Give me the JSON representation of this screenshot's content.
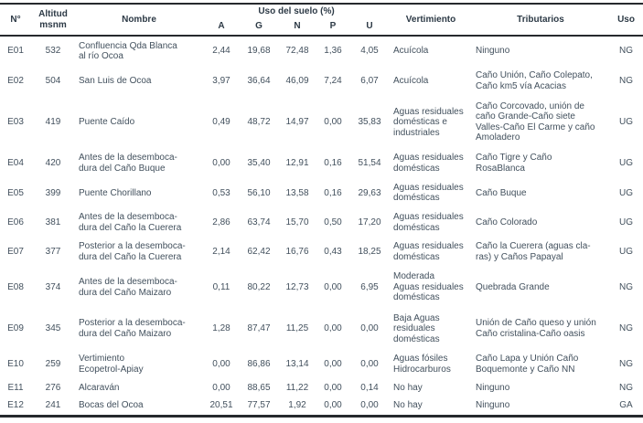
{
  "table": {
    "col_keys": [
      "num",
      "altitud",
      "nombre",
      "a",
      "g",
      "n",
      "p",
      "u",
      "vertimiento",
      "tributarios",
      "uso"
    ],
    "header": {
      "num": "N°",
      "altitud": "Altitud\nmsnm",
      "nombre": "Nombre",
      "uso_suelo": "Uso del suelo (%)",
      "sub": [
        "A",
        "G",
        "N",
        "P",
        "U"
      ],
      "vertimiento": "Vertimiento",
      "tributarios": "Tributarios",
      "uso": "Uso"
    },
    "rows": [
      {
        "num": "E01",
        "altitud": "532",
        "nombre": "Confluencia Qda Blanca\nal río Ocoa",
        "a": "2,44",
        "g": "19,68",
        "n": "72,48",
        "p": "1,36",
        "u": "4,05",
        "vertimiento": "Acuícola",
        "tributarios": "Ninguno",
        "uso": "NG"
      },
      {
        "num": "E02",
        "altitud": "504",
        "nombre": "San Luis de Ocoa",
        "a": "3,97",
        "g": "36,64",
        "n": "46,09",
        "p": "7,24",
        "u": "6,07",
        "vertimiento": "Acuícola",
        "tributarios": "Caño Unión, Caño Colepato,\nCaño km5 vía Acacias",
        "uso": "NG"
      },
      {
        "num": "E03",
        "altitud": "419",
        "nombre": "Puente Caído",
        "a": "0,49",
        "g": "48,72",
        "n": "14,97",
        "p": "0,00",
        "u": "35,83",
        "vertimiento": "Aguas residuales\ndomésticas e\nindustriales",
        "tributarios": "Caño Corcovado, unión de\ncaño Grande-Caño siete\nValles-Caño El Carme y caño\nAmoladero",
        "uso": "UG"
      },
      {
        "num": "E04",
        "altitud": "420",
        "nombre": "Antes de la desemboca-\ndura del Caño Buque",
        "a": "0,00",
        "g": "35,40",
        "n": "12,91",
        "p": "0,16",
        "u": "51,54",
        "vertimiento": "Aguas residuales\ndomésticas",
        "tributarios": "Caño Tigre y Caño\nRosaBlanca",
        "uso": "UG"
      },
      {
        "num": "E05",
        "altitud": "399",
        "nombre": "Puente Chorillano",
        "a": "0,53",
        "g": "56,10",
        "n": "13,58",
        "p": "0,16",
        "u": "29,63",
        "vertimiento": "Aguas residuales\ndomésticas",
        "tributarios": "Caño Buque",
        "uso": "UG"
      },
      {
        "num": "E06",
        "altitud": "381",
        "nombre": "Antes de la desemboca-\ndura del Caño la Cuerera",
        "a": "2,86",
        "g": "63,74",
        "n": "15,70",
        "p": "0,50",
        "u": "17,20",
        "vertimiento": "Aguas residuales\ndomésticas",
        "tributarios": "Caño Colorado",
        "uso": "UG"
      },
      {
        "num": "E07",
        "altitud": "377",
        "nombre": "Posterior a la desemboca-\ndura del Caño la Cuerera",
        "a": "2,14",
        "g": "62,42",
        "n": "16,76",
        "p": "0,43",
        "u": "18,25",
        "vertimiento": "Aguas residuales\ndomésticas",
        "tributarios": "Caño la Cuerera (aguas cla-\nras) y Caños Papayal",
        "uso": "UG"
      },
      {
        "num": "E08",
        "altitud": "374",
        "nombre": "Antes de la desemboca-\ndura del Caño Maizaro",
        "a": "0,11",
        "g": "80,22",
        "n": "12,73",
        "p": "0,00",
        "u": "6,95",
        "vertimiento": "Moderada\nAguas residuales\ndomésticas",
        "tributarios": "Quebrada Grande",
        "uso": "NG"
      },
      {
        "num": "E09",
        "altitud": "345",
        "nombre": "Posterior a la desemboca-\ndura del Caño Maizaro",
        "a": "1,28",
        "g": "87,47",
        "n": "11,25",
        "p": "0,00",
        "u": "0,00",
        "vertimiento": "Baja Aguas\nresiduales\ndomésticas",
        "tributarios": "Unión de Caño queso y unión\nCaño cristalina-Caño oasis",
        "uso": "NG"
      },
      {
        "num": "E10",
        "altitud": "259",
        "nombre": "Vertimiento\nEcopetrol-Apiay",
        "a": "0,00",
        "g": "86,86",
        "n": "13,14",
        "p": "0,00",
        "u": "0,00",
        "vertimiento": "Aguas fósiles\nHidrocarburos",
        "tributarios": "Caño Lapa y Unión Caño\nBoquemonte y Caño NN",
        "uso": "NG"
      },
      {
        "num": "E11",
        "altitud": "276",
        "nombre": "Alcaraván",
        "a": "0,00",
        "g": "88,65",
        "n": "11,22",
        "p": "0,00",
        "u": "0,14",
        "vertimiento": "No hay",
        "tributarios": "Ninguno",
        "uso": "NG"
      },
      {
        "num": "E12",
        "altitud": "241",
        "nombre": "Bocas del Ocoa",
        "a": "20,51",
        "g": "77,57",
        "n": "1,92",
        "p": "0,00",
        "u": "0,00",
        "vertimiento": "No hay",
        "tributarios": "Ninguno",
        "uso": "GA"
      }
    ]
  },
  "colors": {
    "text_body": "#42505d",
    "text_header": "#2d3a46",
    "rule": "#26292d",
    "background": "#ffffff"
  }
}
